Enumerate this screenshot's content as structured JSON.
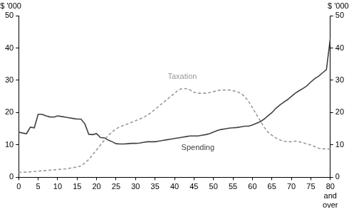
{
  "chart_data": {
    "type": "line",
    "ylabel": "$ '000",
    "y2label": "$ '000",
    "x": [
      0,
      1,
      2,
      3,
      4,
      5,
      6,
      7,
      8,
      9,
      10,
      11,
      12,
      13,
      14,
      15,
      16,
      17,
      18,
      19,
      20,
      21,
      22,
      23,
      24,
      25,
      26,
      27,
      28,
      29,
      30,
      31,
      32,
      33,
      34,
      35,
      36,
      37,
      38,
      39,
      40,
      41,
      42,
      43,
      44,
      45,
      46,
      47,
      48,
      49,
      50,
      51,
      52,
      53,
      54,
      55,
      56,
      57,
      58,
      59,
      60,
      61,
      62,
      63,
      64,
      65,
      66,
      67,
      68,
      69,
      70,
      71,
      72,
      73,
      74,
      75,
      76,
      77,
      78,
      79,
      80
    ],
    "series": [
      {
        "name": "Spending",
        "color": "#404040",
        "line_style": "solid",
        "marker": "none",
        "values": [
          14,
          13.7,
          13.5,
          15.5,
          15.3,
          19.5,
          19.5,
          19,
          18.7,
          18.6,
          19,
          18.8,
          18.6,
          18.4,
          18.2,
          18,
          18,
          16.5,
          13.3,
          13.2,
          13.5,
          12.3,
          12.2,
          11.5,
          11,
          10.4,
          10.3,
          10.3,
          10.4,
          10.5,
          10.5,
          10.6,
          10.8,
          11,
          11,
          11,
          11.2,
          11.4,
          11.6,
          11.8,
          12,
          12.2,
          12.4,
          12.6,
          12.8,
          12.8,
          12.8,
          13,
          13.2,
          13.5,
          14,
          14.5,
          14.8,
          15,
          15.2,
          15.3,
          15.4,
          15.6,
          15.8,
          15.8,
          16.2,
          16.7,
          17.2,
          18,
          19,
          20,
          21.3,
          22.3,
          23.2,
          24,
          25,
          26,
          26.8,
          27.5,
          28.3,
          29.5,
          30.5,
          31.3,
          32.3,
          33.3,
          43
        ]
      },
      {
        "name": "Taxation",
        "color": "#999999",
        "line_style": "dashed",
        "marker": "none",
        "values": [
          1.5,
          1.6,
          1.6,
          1.7,
          1.8,
          1.9,
          2,
          2.1,
          2.2,
          2.3,
          2.4,
          2.5,
          2.6,
          2.8,
          3,
          3.2,
          3.5,
          4.5,
          5.5,
          7,
          8.5,
          10,
          11.5,
          13,
          14,
          15,
          15.6,
          16.1,
          16.5,
          17,
          17.5,
          18,
          18.5,
          19.2,
          20,
          21,
          22,
          23,
          24,
          25,
          26,
          27,
          27.5,
          27.4,
          27,
          26.3,
          26,
          26,
          26,
          26.2,
          26.5,
          26.8,
          27,
          27,
          27,
          26.8,
          26.5,
          26,
          25,
          23.5,
          21.5,
          19.5,
          17.5,
          15.5,
          14,
          13,
          12.2,
          11.6,
          11.2,
          11,
          11,
          11.2,
          11,
          10.7,
          10.3,
          10,
          9.5,
          9,
          8.8,
          8.8,
          8.7
        ]
      }
    ],
    "annotations": [
      {
        "text": "Taxation",
        "x": 42,
        "y": 31
      },
      {
        "text": "Spending",
        "x": 46,
        "y": 9
      }
    ],
    "xlim": [
      0,
      80
    ],
    "xticks": [
      0,
      5,
      10,
      15,
      20,
      25,
      30,
      35,
      40,
      45,
      50,
      55,
      60,
      65,
      70,
      75,
      {
        "value": 80,
        "label": "80 and over"
      }
    ],
    "ylim": [
      0,
      50
    ],
    "yticks": [
      0,
      10,
      20,
      30,
      40,
      50
    ],
    "y2lim": [
      0,
      50
    ],
    "y2ticks": [
      0,
      10,
      20,
      30,
      40,
      50
    ],
    "grid": false
  }
}
